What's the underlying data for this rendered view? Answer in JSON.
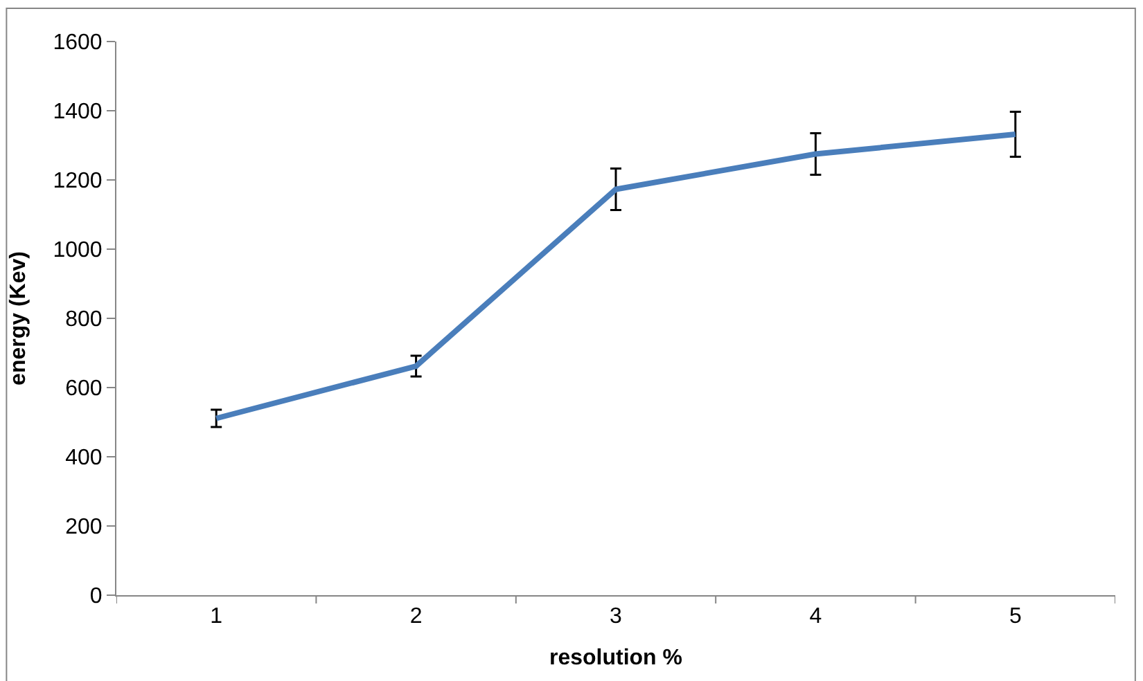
{
  "chart_data": {
    "type": "line",
    "xlabel": "resolution %",
    "ylabel": "energy (Kev)",
    "categories": [
      "1",
      "2",
      "3",
      "4",
      "5"
    ],
    "series": [
      {
        "color": "#4a7ebb",
        "values": [
          511,
          662,
          1173,
          1275,
          1332
        ],
        "errors": [
          25,
          30,
          60,
          60,
          65
        ]
      }
    ],
    "ylim": [
      0,
      1600
    ],
    "yticks": [
      0,
      200,
      400,
      600,
      800,
      1000,
      1200,
      1400,
      1600
    ],
    "marker": "none",
    "line_style": "solid"
  }
}
